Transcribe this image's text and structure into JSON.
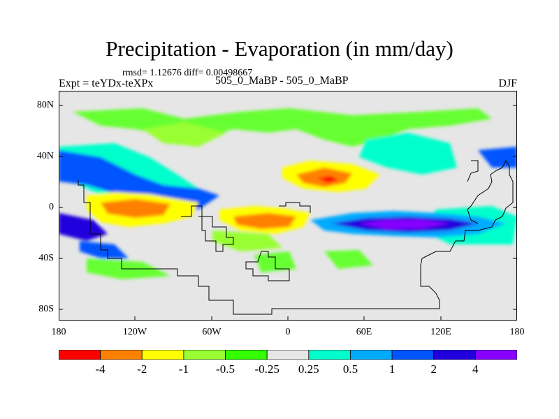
{
  "title": "Precipitation - Evaporation (in mm/day)",
  "stats": "rmsd= 1.12676 diff= 0.00498667",
  "experiment": "Expt = teYDx-teXPx",
  "center_label": "505_0_MaBP - 505_0_MaBP",
  "season": "DJF",
  "lat_ticks": [
    "80N",
    "40N",
    "0",
    "40S",
    "80S"
  ],
  "lon_ticks": [
    "180",
    "120W",
    "60W",
    "0",
    "60E",
    "120E",
    "180"
  ],
  "colorbar": {
    "colors": [
      "#ff0000",
      "#ff8000",
      "#ffff00",
      "#99ff33",
      "#33ff00",
      "#e6e6e6",
      "#00ffcc",
      "#00aaff",
      "#0055ff",
      "#2200dd",
      "#8800ff"
    ],
    "labels": [
      "-4",
      "-2",
      "-1",
      "-0.5",
      "-0.25",
      "0.25",
      "0.5",
      "1",
      "2",
      "4"
    ]
  }
}
